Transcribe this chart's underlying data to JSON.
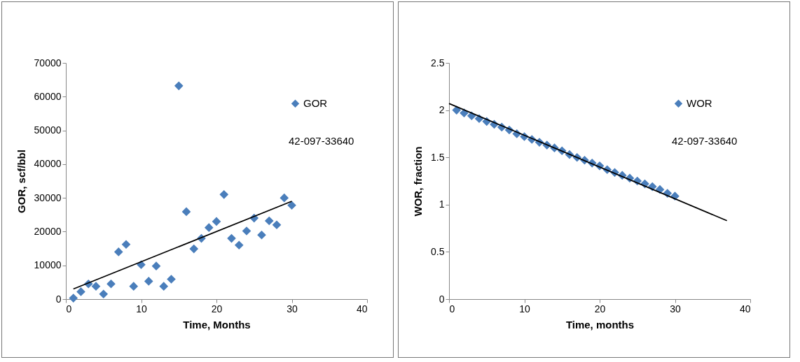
{
  "chart_data": [
    {
      "type": "scatter",
      "xlabel": "Time, Months",
      "ylabel": "GOR, scf/bbl",
      "xlim": [
        0,
        40
      ],
      "xticks": [
        0,
        10,
        20,
        30,
        40
      ],
      "ylim": [
        0,
        70000
      ],
      "yticks": [
        0,
        10000,
        20000,
        30000,
        40000,
        50000,
        60000,
        70000
      ],
      "grid": false,
      "legend": "right",
      "annotations": [
        "42-097-33640"
      ],
      "series": [
        {
          "name": "GOR",
          "color": "#4a7ebb",
          "marker": "diamond",
          "x": [
            1,
            2,
            3,
            4,
            5,
            6,
            7,
            8,
            9,
            10,
            11,
            12,
            13,
            14,
            15,
            16,
            17,
            18,
            19,
            20,
            21,
            22,
            23,
            24,
            25,
            26,
            27,
            28,
            29,
            30
          ],
          "values": [
            300,
            2200,
            4500,
            3800,
            1500,
            4500,
            14000,
            16200,
            3800,
            10200,
            5300,
            9800,
            3800,
            5900,
            63200,
            25900,
            14900,
            18000,
            21200,
            23000,
            31000,
            18000,
            16000,
            20200,
            24000,
            19000,
            23200,
            22000,
            30000,
            27800
          ]
        },
        {
          "type": "line",
          "color": "#000000",
          "x": [
            1,
            30
          ],
          "values": [
            3000,
            29000
          ]
        }
      ]
    },
    {
      "type": "scatter",
      "xlabel": "Time, months",
      "ylabel": "WOR, fraction",
      "xlim": [
        0,
        40
      ],
      "xticks": [
        0,
        10,
        20,
        30,
        40
      ],
      "ylim": [
        0,
        2.5
      ],
      "yticks": [
        0,
        0.5,
        1,
        1.5,
        2,
        2.5
      ],
      "grid": false,
      "legend": "right",
      "annotations": [
        "42-097-33640"
      ],
      "series": [
        {
          "name": "WOR",
          "color": "#4a7ebb",
          "marker": "diamond",
          "x": [
            1,
            2,
            3,
            4,
            5,
            6,
            7,
            8,
            9,
            10,
            11,
            12,
            13,
            14,
            15,
            16,
            17,
            18,
            19,
            20,
            21,
            22,
            23,
            24,
            25,
            26,
            27,
            28,
            29,
            30
          ],
          "values": [
            2.0,
            1.97,
            1.94,
            1.91,
            1.88,
            1.85,
            1.82,
            1.79,
            1.75,
            1.72,
            1.69,
            1.66,
            1.63,
            1.6,
            1.57,
            1.53,
            1.5,
            1.47,
            1.44,
            1.41,
            1.37,
            1.34,
            1.31,
            1.28,
            1.25,
            1.22,
            1.19,
            1.16,
            1.12,
            1.09
          ]
        },
        {
          "type": "line",
          "color": "#000000",
          "x": [
            0,
            36.9
          ],
          "values": [
            2.07,
            0.83
          ]
        }
      ]
    }
  ]
}
